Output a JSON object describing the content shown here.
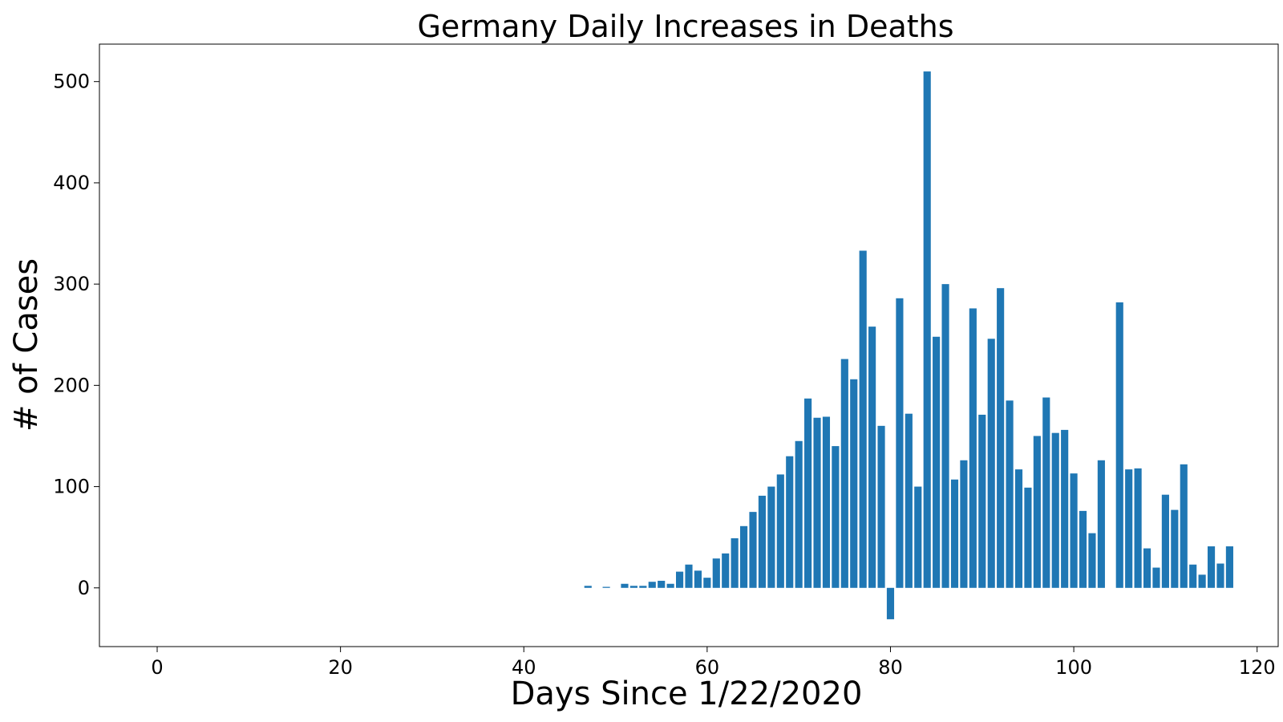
{
  "chart_data": {
    "type": "bar",
    "title": "Germany Daily Increases in Deaths",
    "xlabel": "Days Since 1/22/2020",
    "ylabel": "# of Cases",
    "xlim": [
      -6.3,
      122.3
    ],
    "ylim": [
      -58,
      537
    ],
    "xticks": [
      0,
      20,
      40,
      60,
      80,
      100,
      120
    ],
    "yticks": [
      0,
      100,
      200,
      300,
      400,
      500
    ],
    "bar_color": "#1f77b4",
    "grid": false,
    "x": [
      47,
      48,
      49,
      50,
      51,
      52,
      53,
      54,
      55,
      56,
      57,
      58,
      59,
      60,
      61,
      62,
      63,
      64,
      65,
      66,
      67,
      68,
      69,
      70,
      71,
      72,
      73,
      74,
      75,
      76,
      77,
      78,
      79,
      80,
      81,
      82,
      83,
      84,
      85,
      86,
      87,
      88,
      89,
      90,
      91,
      92,
      93,
      94,
      95,
      96,
      97,
      98,
      99,
      100,
      101,
      102,
      103,
      104,
      105,
      106,
      107,
      108,
      109,
      110,
      111,
      112,
      113,
      114,
      115,
      116,
      117
    ],
    "values": [
      2,
      0,
      1,
      0,
      4,
      2,
      2,
      6,
      7,
      4,
      16,
      23,
      17,
      10,
      29,
      34,
      49,
      61,
      75,
      91,
      100,
      112,
      130,
      145,
      187,
      168,
      169,
      140,
      226,
      206,
      333,
      258,
      160,
      -31,
      286,
      172,
      100,
      510,
      248,
      300,
      107,
      126,
      276,
      171,
      246,
      296,
      185,
      117,
      99,
      150,
      188,
      153,
      156,
      113,
      76,
      54,
      126,
      0,
      282,
      117,
      118,
      39,
      20,
      92,
      77,
      122,
      23,
      13,
      41,
      24,
      41
    ]
  }
}
